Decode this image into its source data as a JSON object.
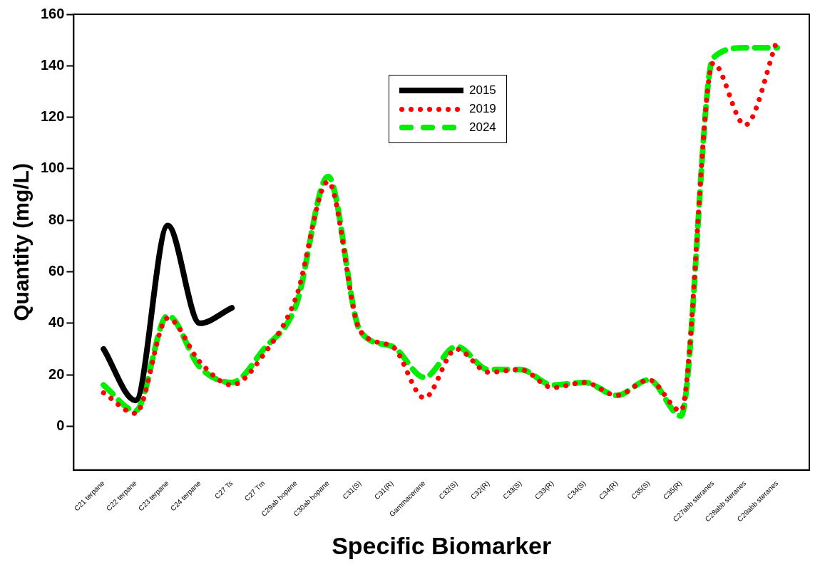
{
  "chart_data": {
    "type": "line",
    "xlabel": "Specific Biomarker",
    "ylabel": "Quantity (mg/L)",
    "categories": [
      "C21 terpane",
      "C22 terpane",
      "C23 terpane",
      "C24 terpane",
      "C27 Ts",
      "C27 Tm",
      "C29ab hopane",
      "C30ab hopane",
      "C31(S)",
      "C31(R)",
      "Gammacerane",
      "C32(S)",
      "C32(R)",
      "C33(S)",
      "C33(R)",
      "C34(S)",
      "C34(R)",
      "C35(S)",
      "C35(R)",
      "C27abb steranes",
      "C28abb steranes",
      "C29abb steranes"
    ],
    "series": [
      {
        "name": "2015",
        "color": "#000000",
        "line_style": "solid",
        "values": [
          30,
          10,
          78,
          40,
          46,
          null,
          null,
          null,
          null,
          null,
          null,
          null,
          null,
          null,
          null,
          null,
          null,
          null,
          null,
          null,
          null,
          null
        ]
      },
      {
        "name": "2019",
        "color": "#ff0000",
        "line_style": "dotted",
        "values": [
          13,
          5,
          42,
          25,
          16,
          28,
          50,
          95,
          37,
          31,
          11,
          30,
          21,
          22,
          15,
          17,
          12,
          18,
          6,
          141,
          117,
          150
        ]
      },
      {
        "name": "2024",
        "color": "#00ee00",
        "line_style": "dashed",
        "values": [
          16,
          6,
          43,
          23,
          17,
          30,
          47,
          97,
          37,
          31,
          19,
          31,
          22,
          22,
          16,
          17,
          12,
          18,
          4,
          143,
          147,
          147
        ]
      }
    ],
    "ylim": [
      -17,
      160
    ],
    "yticks": [
      0,
      20,
      40,
      60,
      80,
      100,
      120,
      140,
      160
    ],
    "grid": false,
    "legend": "top",
    "marker": "none"
  }
}
